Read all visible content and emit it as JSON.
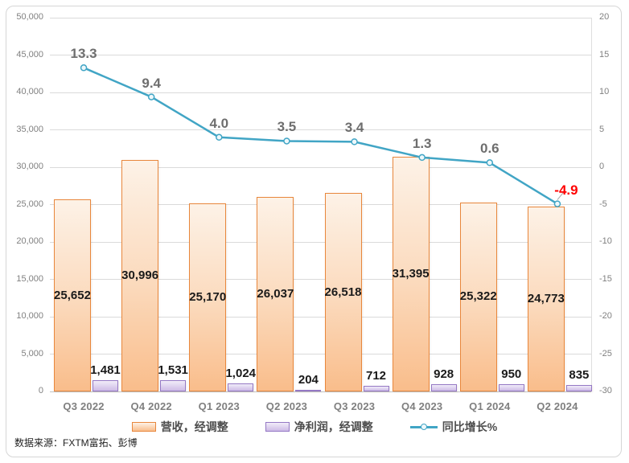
{
  "source_note": "数据来源：FXTM富拓、彭博",
  "chart_data": {
    "type": "combo",
    "title": "",
    "categories": [
      "Q3 2022",
      "Q4 2022",
      "Q1 2023",
      "Q2 2023",
      "Q3 2023",
      "Q4 2023",
      "Q1 2024",
      "Q2 2024"
    ],
    "series": [
      {
        "name": "营收，经调整",
        "type": "bar",
        "axis": "left",
        "values": [
          25652,
          30996,
          25170,
          26037,
          26518,
          31395,
          25322,
          24773
        ],
        "labels": [
          "25,652",
          "30,996",
          "25,170",
          "26,037",
          "26,518",
          "31,395",
          "25,322",
          "24,773"
        ]
      },
      {
        "name": "净利润，经调整",
        "type": "bar",
        "axis": "left",
        "values": [
          1481,
          1531,
          1024,
          204,
          712,
          928,
          950,
          835
        ],
        "labels": [
          "1,481",
          "1,531",
          "1,024",
          "204",
          "712",
          "928",
          "950",
          "835"
        ]
      },
      {
        "name": "同比增长%",
        "type": "line",
        "axis": "right",
        "values": [
          13.3,
          9.4,
          4.0,
          3.5,
          3.4,
          1.3,
          0.6,
          -4.9
        ],
        "labels": [
          "13.3",
          "9.4",
          "4.0",
          "3.5",
          "3.4",
          "1.3",
          "0.6",
          "-4.9"
        ]
      }
    ],
    "left_axis": {
      "min": 0,
      "max": 50000,
      "step": 5000,
      "tick_labels": [
        "0",
        "5,000",
        "10,000",
        "15,000",
        "20,000",
        "25,000",
        "30,000",
        "35,000",
        "40,000",
        "45,000",
        "50,000"
      ]
    },
    "right_axis": {
      "min": -30,
      "max": 20,
      "step": 5,
      "tick_labels": [
        "-30",
        "-25",
        "-20",
        "-15",
        "-10",
        "-5",
        "0",
        "5",
        "10",
        "15",
        "20"
      ]
    },
    "grid": true,
    "legend_position": "bottom",
    "colors": {
      "revenue_border": "#E8873C",
      "revenue_fill_top": "#FDF2E7",
      "revenue_fill_bottom": "#F9BD8B",
      "profit_border": "#9478C4",
      "profit_fill_top": "#F1ECF9",
      "profit_fill_bottom": "#CDBBE6",
      "line": "#41A5C5",
      "marker_fill": "#EEF8FB",
      "gridline": "#DADADA",
      "axis_text": "#808080",
      "category_text": "#7F7F7F",
      "bar_label": "#1A1A1A",
      "line_label": "#6E6E6E",
      "negative_label": "#FF0000"
    }
  }
}
